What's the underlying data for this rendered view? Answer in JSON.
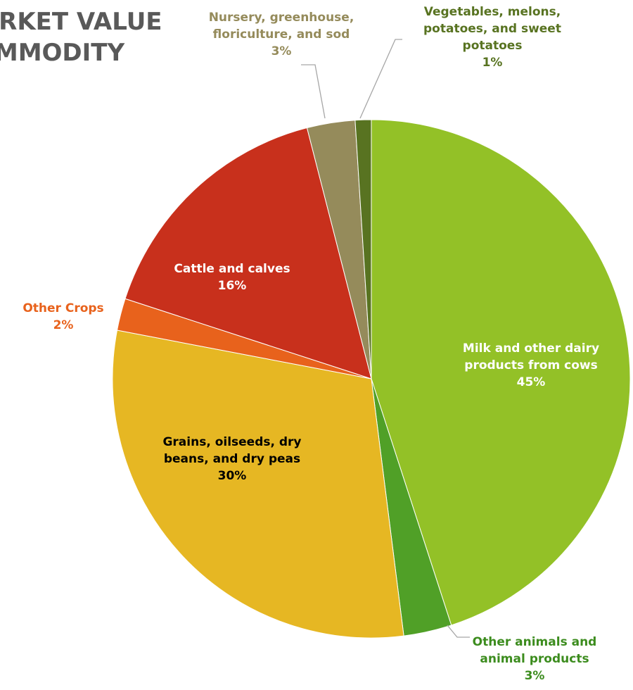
{
  "title_lines": [
    "MARKET VALUE",
    "COMMODITY"
  ],
  "chart_data": {
    "type": "pie",
    "title": "MARKET VALUE COMMODITY",
    "slices": [
      {
        "name": "Milk and other dairy products from cows",
        "value": 45,
        "pct_label": "45%",
        "label_lines": [
          "Milk and other dairy",
          "products from cows"
        ],
        "color": "#93C127",
        "label_color": "#FFFFFF"
      },
      {
        "name": "Other animals and animal products",
        "value": 3,
        "pct_label": "3%",
        "label_lines": [
          "Other animals and",
          "animal products"
        ],
        "color": "#50A027",
        "label_color": "#3C8C1E"
      },
      {
        "name": "Grains, oilseeds, dry beans, and dry peas",
        "value": 30,
        "pct_label": "30%",
        "label_lines": [
          "Grains, oilseeds, dry",
          "beans, and dry peas"
        ],
        "color": "#E6B723",
        "label_color": "#000000"
      },
      {
        "name": "Other Crops",
        "value": 2,
        "pct_label": "2%",
        "label_lines": [
          "Other Crops"
        ],
        "color": "#E8621C",
        "label_color": "#E8621C"
      },
      {
        "name": "Cattle and calves",
        "value": 16,
        "pct_label": "16%",
        "label_lines": [
          "Cattle and calves"
        ],
        "color": "#C8301C",
        "label_color": "#FFFFFF"
      },
      {
        "name": "Nursery, greenhouse, floriculture, and sod",
        "value": 3,
        "pct_label": "3%",
        "label_lines": [
          "Nursery, greenhouse,",
          "floriculture, and sod"
        ],
        "color": "#958B5B",
        "label_color": "#958B5B"
      },
      {
        "name": "Vegetables, melons, potatoes, and sweet potatoes",
        "value": 1,
        "pct_label": "1%",
        "label_lines": [
          "Vegetables, melons,",
          "potatoes, and sweet",
          "potatoes"
        ],
        "color": "#587321",
        "label_color": "#587321"
      }
    ],
    "leader_line_color": "#A6A6A6"
  }
}
